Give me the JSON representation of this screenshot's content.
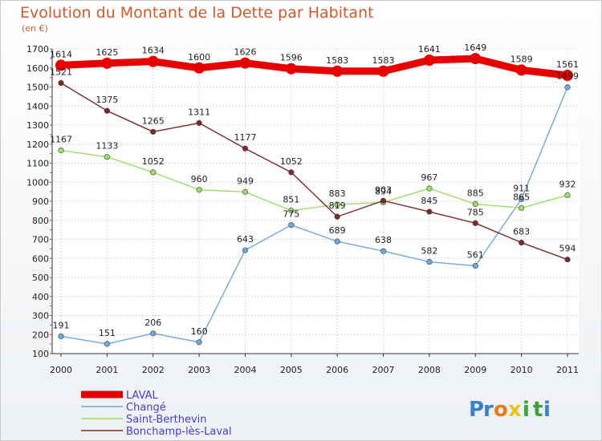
{
  "header": {
    "title": "Evolution du Montant de la Dette par Habitant",
    "subtitle": "(en €)"
  },
  "logo": {
    "text": "Proxiti",
    "letters": [
      "P",
      "r",
      "o",
      "x",
      "i",
      "t",
      "i"
    ],
    "colors": [
      "#3a7fd0",
      "#3a7fd0",
      "#e87a1a",
      "#e8c41a",
      "#3aa03a",
      "#3aa03a",
      "#3a7fd0"
    ]
  },
  "chart_data": {
    "type": "line",
    "title": "Evolution du Montant de la Dette par Habitant",
    "subtitle": "(en €)",
    "categories": [
      "2000",
      "2001",
      "2002",
      "2003",
      "2004",
      "2005",
      "2006",
      "2007",
      "2008",
      "2009",
      "2010",
      "2011"
    ],
    "ylim": [
      100,
      1700
    ],
    "yticks": [
      100,
      200,
      300,
      400,
      500,
      600,
      700,
      800,
      900,
      1000,
      1100,
      1200,
      1300,
      1400,
      1500,
      1600,
      1700
    ],
    "grid": true,
    "legend_position": "bottom-left",
    "series": [
      {
        "name": "LAVAL",
        "color": "#e80000",
        "values": [
          1614,
          1625,
          1634,
          1600,
          1626,
          1596,
          1583,
          1583,
          1641,
          1649,
          1589,
          1561
        ]
      },
      {
        "name": "Changé",
        "color": "#6fa8dc",
        "values": [
          191,
          151,
          206,
          160,
          643,
          775,
          689,
          638,
          582,
          561,
          911,
          1499
        ]
      },
      {
        "name": "Saint-Berthevin",
        "color": "#9edc6a",
        "values": [
          1167,
          1133,
          1052,
          960,
          949,
          851,
          883,
          894,
          967,
          885,
          865,
          932
        ]
      },
      {
        "name": "Bonchamp-lès-Laval",
        "color": "#7a2a2a",
        "values": [
          1521,
          1375,
          1265,
          1311,
          1177,
          1052,
          819,
          903,
          845,
          785,
          683,
          594
        ]
      }
    ]
  }
}
